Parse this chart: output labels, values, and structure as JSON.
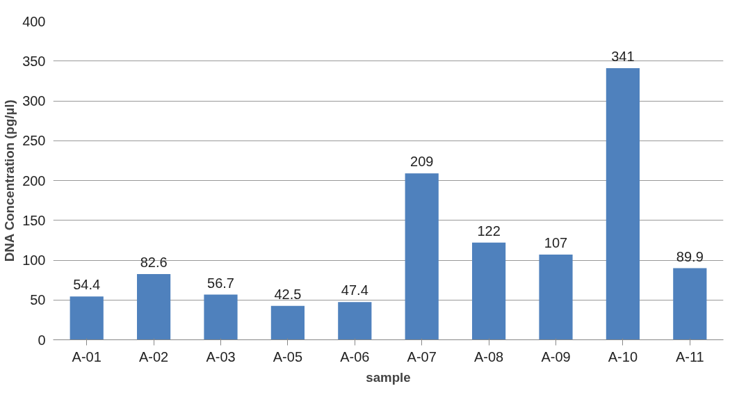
{
  "chart_data": {
    "type": "bar",
    "xlabel": "sample",
    "ylabel": "DNA Concentration (pg/µl)",
    "categories": [
      "A-01",
      "A-02",
      "A-03",
      "A-05",
      "A-06",
      "A-07",
      "A-08",
      "A-09",
      "A-10",
      "A-11"
    ],
    "values": [
      54.4,
      82.6,
      56.7,
      42.5,
      47.4,
      209,
      122,
      107,
      341,
      89.9
    ],
    "color": "#4f81bd",
    "ylim": [
      0,
      400
    ],
    "yticks": [
      0,
      50,
      100,
      150,
      200,
      250,
      300,
      350,
      400
    ],
    "grid": "y",
    "data_labels": true
  }
}
